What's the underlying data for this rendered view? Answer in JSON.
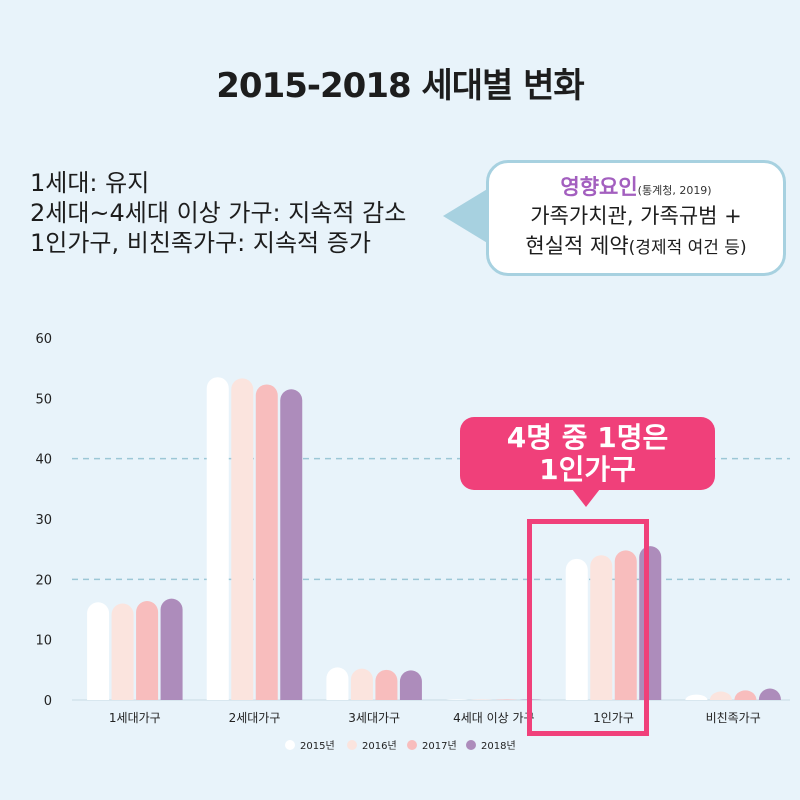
{
  "title": "2015-2018 세대별 변화",
  "summary": [
    "1세대: 유지",
    "2세대~4세대 이상 가구: 지속적 감소",
    "1인가구, 비친족가구: 지속적 증가"
  ],
  "callout": {
    "heading": "영향요인",
    "source": "(통계청, 2019)",
    "line1": "가족가치관, 가족규범 +",
    "line2_main": "현실적 제약",
    "line2_small": "(경제적 여건 등)"
  },
  "badge": {
    "line1": "4명 중 1명은",
    "line2": "1인가구"
  },
  "chart_data": {
    "type": "bar",
    "categories": [
      "1세대가구",
      "2세대가구",
      "3세대가구",
      "4세대 이상 가구",
      "1인가구",
      "비친족가구"
    ],
    "series": [
      {
        "name": "2015년",
        "values": [
          16.2,
          53.5,
          5.4,
          0.1,
          23.4,
          0.9
        ]
      },
      {
        "name": "2016년",
        "values": [
          16.0,
          53.3,
          5.2,
          0.1,
          24.0,
          1.4
        ]
      },
      {
        "name": "2017년",
        "values": [
          16.4,
          52.3,
          5.0,
          0.1,
          24.8,
          1.6
        ]
      },
      {
        "name": "2018년",
        "values": [
          16.8,
          51.5,
          4.9,
          0.1,
          25.5,
          1.9
        ]
      }
    ],
    "colors": [
      "#ffffff",
      "#fbe4de",
      "#f8bdbd",
      "#ad8cbb"
    ],
    "ylim": [
      0,
      60
    ],
    "yticks": [
      0,
      10,
      20,
      30,
      40,
      50,
      60
    ],
    "dashed_gridlines": [
      20,
      40
    ],
    "legend_position": "bottom"
  }
}
